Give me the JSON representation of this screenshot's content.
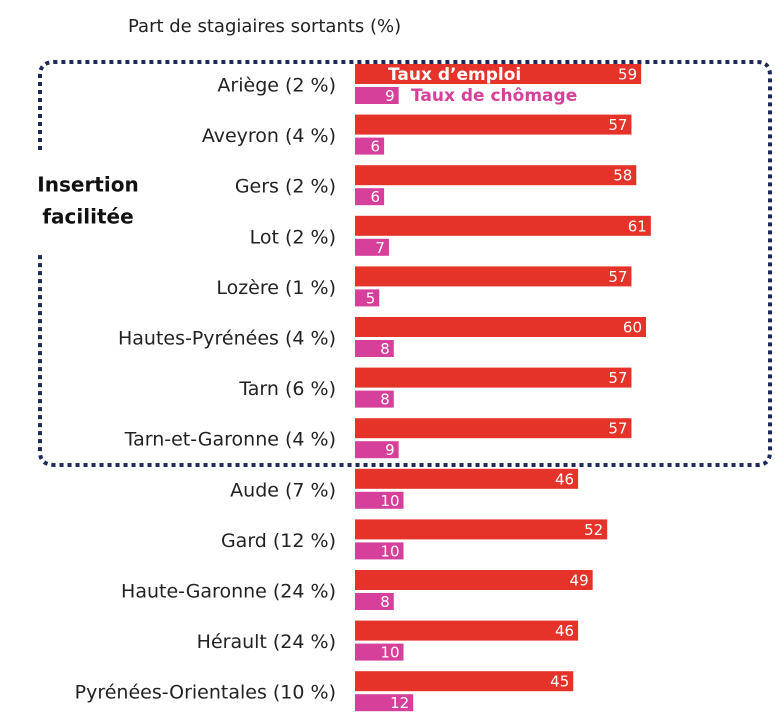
{
  "chart_data": {
    "type": "bar",
    "orientation": "horizontal",
    "subtitle": "Part de stagiaires sortants (%)",
    "annotation": [
      "Insertion",
      "facilitée"
    ],
    "categories": [
      "Ariège (2 %)",
      "Aveyron (4 %)",
      "Gers (2 %)",
      "Lot (2 %)",
      "Lozère (1 %)",
      "Hautes-Pyrénées (4 %)",
      "Tarn (6 %)",
      "Tarn-et-Garonne (4 %)",
      "Aude (7 %)",
      "Gard (12 %)",
      "Haute-Garonne (24 %)",
      "Hérault (24 %)",
      "Pyrénées-Orientales (10 %)"
    ],
    "series": [
      {
        "name": "Taux d’emploi",
        "color": "#e5332a",
        "values": [
          59,
          57,
          58,
          61,
          57,
          60,
          57,
          57,
          46,
          52,
          49,
          46,
          45
        ]
      },
      {
        "name": "Taux de chômage",
        "color": "#d6409a",
        "values": [
          9,
          6,
          6,
          7,
          5,
          8,
          8,
          9,
          10,
          10,
          8,
          10,
          12
        ]
      }
    ]
  }
}
